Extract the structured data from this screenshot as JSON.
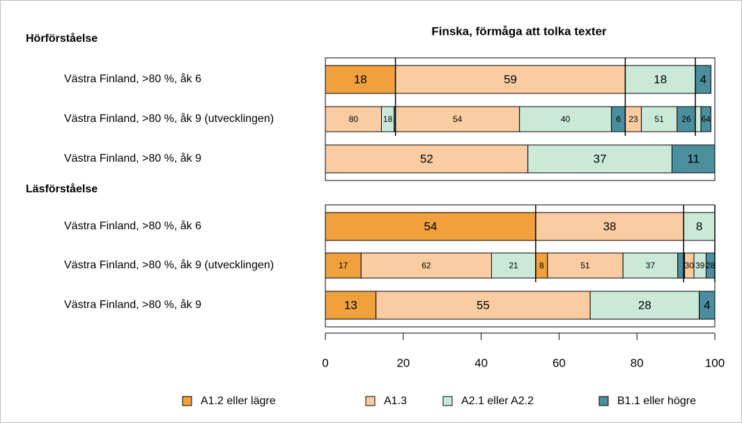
{
  "chart_data": {
    "type": "bar",
    "orientation": "horizontal",
    "stacked": true,
    "title": "Finska, förmåga att tolka texter",
    "xlim": [
      0,
      100
    ],
    "xticks": [
      0,
      20,
      40,
      60,
      80,
      100
    ],
    "legend": "bottom",
    "segments": [
      {
        "name": "A1.2 eller lägre",
        "color": "#f0a03c"
      },
      {
        "name": "A1.3",
        "color": "#fbcca2"
      },
      {
        "name": "A2.1 eller A2.2",
        "color": "#cbe9d9"
      },
      {
        "name": "B1.1 eller högre",
        "color": "#4b8e9e"
      }
    ],
    "groups": [
      {
        "label": "Hörförståelse",
        "rows": [
          {
            "label": "Västra Finland, >80 %, åk 6",
            "values": [
              18,
              59,
              18,
              4
            ]
          },
          {
            "label": "Västra Finland, >80 %, åk 9 (utvecklingen)",
            "subgroups": [
              {
                "values": [
                  null,
                  80,
                  18,
                  2
                ],
                "value_labels": [
                  null,
                  "80",
                  "18",
                  null
                ]
              },
              {
                "values": [
                  null,
                  54,
                  40,
                  6
                ],
                "value_labels": [
                  null,
                  "54",
                  "40",
                  "6"
                ]
              },
              {
                "values": [
                  null,
                  23,
                  51,
                  26
                ],
                "value_labels": [
                  null,
                  "23",
                  "51",
                  "26"
                ]
              },
              {
                "values": [
                  null,
                  null,
                  36,
                  64
                ],
                "value_labels": [
                  null,
                  null,
                  null,
                  "64"
                ]
              }
            ]
          },
          {
            "label": "Västra Finland, >80 %, åk 9",
            "values": [
              0,
              52,
              37,
              11
            ],
            "value_labels": [
              null,
              "52",
              "37",
              "11"
            ]
          }
        ]
      },
      {
        "label": "Läsförståelse",
        "rows": [
          {
            "label": "Västra Finland, >80 %, åk 6",
            "values": [
              54,
              38,
              8,
              0
            ],
            "value_labels": [
              "54",
              "38",
              "8",
              null
            ]
          },
          {
            "label": "Västra Finland, >80 %, åk 9 (utvecklingen)",
            "subgroups": [
              {
                "values": [
                  17,
                  62,
                  21,
                  null
                ],
                "value_labels": [
                  "17",
                  "62",
                  "21",
                  null
                ]
              },
              {
                "values": [
                  8,
                  51,
                  37,
                  4
                ],
                "value_labels": [
                  "8",
                  "51",
                  "37",
                  null
                ]
              },
              {
                "values": [
                  3,
                  30,
                  39,
                  28
                ],
                "value_labels": [
                  null,
                  "30",
                  "39",
                  "28"
                ]
              },
              null
            ]
          },
          {
            "label": "Västra Finland, >80 %, åk 9",
            "values": [
              13,
              55,
              28,
              4
            ]
          }
        ]
      }
    ]
  }
}
